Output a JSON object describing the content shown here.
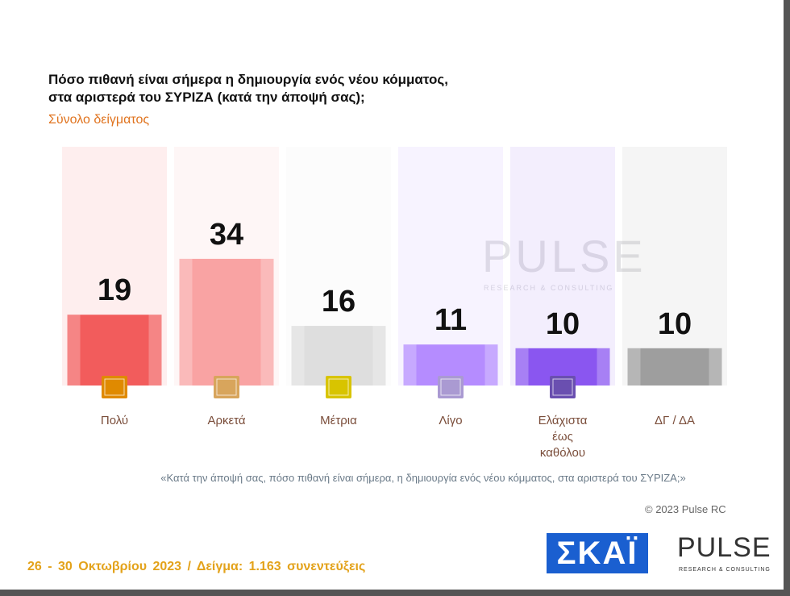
{
  "chart_data": {
    "type": "bar",
    "title": [
      "Πόσο πιθανή είναι σήμερα η δημιουργία ενός νέου κόμματος,",
      "στα αριστερά του ΣΥΡΙΖΑ (κατά την άποψή σας);"
    ],
    "subtitle": "Σύνολο δείγματος",
    "categories": [
      "Πολύ",
      "Αρκετά",
      "Μέτρια",
      "Λίγο",
      "Ελάχιστα έως καθόλου",
      "ΔΓ / ΔΑ"
    ],
    "values": [
      19,
      34,
      16,
      11,
      10,
      10
    ],
    "colors": [
      "#f25c5c",
      "#f9a3a3",
      "#dedede",
      "#b58cff",
      "#8a56f0",
      "#9e9e9e"
    ],
    "question_note": "«Κατά την άποψή σας, πόσο πιθανή είναι σήμερα, η δημιουργία ενός νέου κόμματος, στα αριστερά του ΣΥΡΙΖΑ;»",
    "copyright": "© 2023 Pulse RC",
    "footer": "26 - 30 Οκτωβρίου 2023 / Δείγμα: 1.163 συνεντεύξεις",
    "logo_skai": "ΣΚΑΪ",
    "logo_pulse": "PULSE",
    "logo_pulse_tagline": "RESEARCH & CONSULTING"
  }
}
